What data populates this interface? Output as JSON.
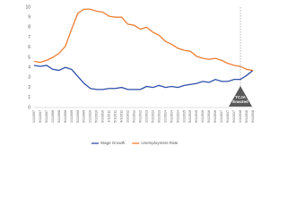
{
  "chart_data": {
    "type": "line",
    "categories": [
      "1/1/2007",
      "5/1/2007",
      "9/1/2007",
      "1/1/2008",
      "5/1/2008",
      "9/1/2008",
      "1/1/2009",
      "5/1/2009",
      "9/1/2009",
      "1/1/2010",
      "5/1/2010",
      "9/1/2010",
      "1/1/2011",
      "5/1/2011",
      "9/1/2011",
      "1/1/2012",
      "5/1/2012",
      "9/1/2012",
      "1/1/2013",
      "5/1/2013",
      "9/1/2013",
      "1/1/2014",
      "5/1/2014",
      "9/1/2014",
      "1/1/2015",
      "5/1/2015",
      "9/1/2015",
      "1/1/2016",
      "5/1/2016",
      "9/1/2016",
      "1/1/2017",
      "5/1/2017",
      "9/1/2017",
      "1/1/2018",
      "5/1/2018",
      "9/1/2018"
    ],
    "series": [
      {
        "name": "Wage Growth",
        "color": "#2e4fa8",
        "values": [
          4.2,
          4.1,
          4.2,
          3.8,
          3.7,
          4.0,
          3.8,
          3.1,
          2.4,
          1.9,
          1.8,
          1.8,
          1.9,
          1.9,
          2.0,
          1.8,
          1.8,
          1.8,
          2.1,
          2.0,
          2.2,
          2.0,
          2.1,
          2.0,
          2.2,
          2.3,
          2.4,
          2.6,
          2.5,
          2.8,
          2.6,
          2.6,
          2.8,
          2.8,
          3.2,
          3.7
        ]
      },
      {
        "name": "Unemployment Rate",
        "color": "#ed7d31",
        "values": [
          4.6,
          4.5,
          4.7,
          5.0,
          5.4,
          6.1,
          7.8,
          9.4,
          9.8,
          9.8,
          9.6,
          9.5,
          9.1,
          9.0,
          9.0,
          8.3,
          8.2,
          7.8,
          8.0,
          7.5,
          7.2,
          6.6,
          6.3,
          5.9,
          5.7,
          5.6,
          5.1,
          4.9,
          4.8,
          4.9,
          4.7,
          4.4,
          4.2,
          4.1,
          3.8,
          3.7
        ]
      }
    ],
    "ylim": [
      0,
      10
    ],
    "yticks": [
      0,
      1,
      2,
      3,
      4,
      5,
      6,
      7,
      8,
      9,
      10
    ],
    "grid": false,
    "annotation": {
      "text": [
        "TCJA",
        "Enacted"
      ],
      "x": "1/1/2018"
    }
  }
}
